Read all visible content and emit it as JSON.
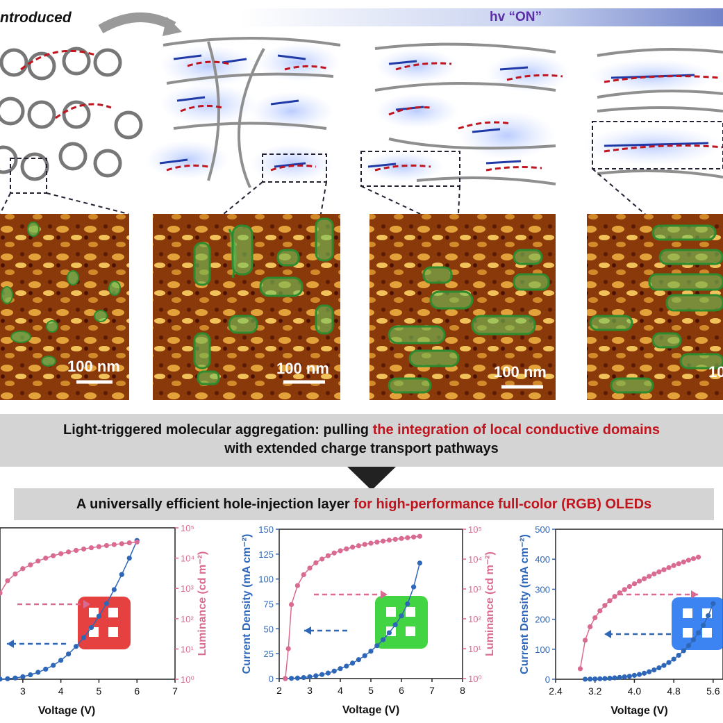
{
  "header": {
    "left_label": "ntroduced",
    "light_label": "hv “ON”"
  },
  "afm_panels": [
    {
      "scale_label": "100 nm"
    },
    {
      "scale_label": "100 nm"
    },
    {
      "scale_label": "100 nm"
    },
    {
      "scale_label": "10"
    }
  ],
  "banner1": {
    "line1_black": "Light-triggered molecular aggregation: pulling ",
    "line1_red": "the integration of local conductive domains",
    "line2": "with extended charge transport pathways"
  },
  "banner2": {
    "black": "A universally efficient hole-injection layer ",
    "red": "for high-performance full-color (RGB) OLEDs"
  },
  "colors": {
    "current_blue": "#2e66b8",
    "luminance_pink": "#d96a92",
    "banner_gray": "#d4d4d4",
    "accent_red": "#c0141e",
    "hv_purple": "#5a2ea6"
  },
  "chart_data": [
    {
      "type": "line",
      "xlabel": "Voltage (V)",
      "ylabel": "",
      "y2label": "Luminance (cd m⁻²)",
      "xticks": [
        "3",
        "4",
        "5",
        "6",
        "7"
      ],
      "y2ticks": [
        "10⁰",
        "10¹",
        "10²",
        "10³",
        "10⁴",
        "10⁵"
      ],
      "series": [
        {
          "role": "current_density",
          "x": [
            2.4,
            2.6,
            2.8,
            3.0,
            3.2,
            3.4,
            3.6,
            3.8,
            4.0,
            4.2,
            4.4,
            4.6,
            4.8,
            5.0,
            5.2,
            5.4,
            5.6,
            5.8,
            6.0
          ],
          "y": [
            0.1,
            0.4,
            1,
            2,
            3.5,
            5.5,
            8,
            11,
            15,
            20,
            26,
            33,
            41,
            50,
            60,
            71,
            83,
            96,
            110
          ]
        },
        {
          "role": "luminance",
          "x": [
            2.4,
            2.6,
            2.8,
            3.0,
            3.2,
            3.4,
            3.6,
            3.8,
            4.0,
            4.2,
            4.4,
            4.6,
            4.8,
            5.0,
            5.2,
            5.4,
            5.6,
            5.8,
            6.0
          ],
          "y": [
            700,
            1800,
            3000,
            4500,
            6000,
            8000,
            10000,
            12000,
            14000,
            16000,
            18000,
            20000,
            22000,
            24000,
            26000,
            28000,
            30000,
            32000,
            34000
          ]
        }
      ]
    },
    {
      "type": "line",
      "xlabel": "Voltage (V)",
      "ylabel": "Current Density (mA cm⁻²)",
      "y2label": "Luminance (cd m⁻²)",
      "xlim": [
        2,
        8
      ],
      "ylim": [
        0,
        150
      ],
      "xticks": [
        "2",
        "3",
        "4",
        "5",
        "6",
        "7",
        "8"
      ],
      "yticks": [
        "0",
        "25",
        "50",
        "75",
        "100",
        "125",
        "150"
      ],
      "y2ticks": [
        "10⁰",
        "10¹",
        "10²",
        "10³",
        "10⁴",
        "10⁵"
      ],
      "series": [
        {
          "role": "current_density",
          "x": [
            2.2,
            2.4,
            2.6,
            2.8,
            3.0,
            3.2,
            3.4,
            3.6,
            3.8,
            4.0,
            4.2,
            4.4,
            4.6,
            4.8,
            5.0,
            5.2,
            5.4,
            5.6,
            5.8,
            6.0,
            6.2,
            6.4,
            6.6
          ],
          "y": [
            0,
            0.2,
            0.5,
            1,
            1.8,
            2.8,
            4,
            5.5,
            7.5,
            10,
            12.5,
            15.5,
            19,
            23,
            27.5,
            33,
            39,
            46,
            54,
            63,
            75,
            92,
            116
          ]
        },
        {
          "role": "luminance",
          "x": [
            2.2,
            2.3,
            2.4,
            2.6,
            2.8,
            3.0,
            3.2,
            3.4,
            3.6,
            3.8,
            4.0,
            4.2,
            4.4,
            4.6,
            4.8,
            5.0,
            5.2,
            5.4,
            5.6,
            5.8,
            6.0,
            6.2,
            6.4,
            6.6
          ],
          "y": [
            1,
            10,
            300,
            1300,
            3000,
            5000,
            7500,
            10000,
            13000,
            16000,
            19000,
            22000,
            25000,
            28000,
            31000,
            34000,
            37000,
            40000,
            43000,
            46000,
            49000,
            52000,
            55000,
            58000
          ]
        }
      ]
    },
    {
      "type": "line",
      "xlabel": "Voltage (V)",
      "ylabel": "Current Density (mA cm⁻²)",
      "xlim": [
        2.4,
        5.8
      ],
      "ylim": [
        0,
        500
      ],
      "xticks": [
        "2.4",
        "3.2",
        "4.0",
        "4.8",
        "5.6"
      ],
      "yticks": [
        "0",
        "100",
        "200",
        "300",
        "400",
        "500"
      ],
      "series": [
        {
          "role": "current_density",
          "x": [
            3.0,
            3.1,
            3.2,
            3.3,
            3.4,
            3.5,
            3.6,
            3.7,
            3.8,
            3.9,
            4.0,
            4.1,
            4.2,
            4.3,
            4.4,
            4.5,
            4.6,
            4.7,
            4.8,
            4.9,
            5.0,
            5.1,
            5.2,
            5.3,
            5.4,
            5.5,
            5.6
          ],
          "y": [
            0.2,
            0.5,
            1,
            1.6,
            2.4,
            3.4,
            4.6,
            6,
            8,
            10,
            13,
            16,
            20,
            25,
            31,
            38,
            46,
            56,
            67,
            80,
            95,
            112,
            132,
            155,
            180,
            212,
            252
          ]
        },
        {
          "role": "luminance",
          "x": [
            2.9,
            3.0,
            3.1,
            3.2,
            3.3,
            3.4,
            3.5,
            3.6,
            3.7,
            3.8,
            3.9,
            4.0,
            4.1,
            4.2,
            4.3,
            4.4,
            4.5,
            4.6,
            4.7,
            4.8,
            4.9,
            5.0,
            5.1,
            5.2,
            5.3
          ],
          "y": [
            35,
            130,
            175,
            205,
            228,
            246,
            262,
            276,
            288,
            299,
            309,
            318,
            327,
            335,
            343,
            351,
            358,
            365,
            372,
            379,
            385,
            391,
            397,
            402,
            407
          ]
        }
      ]
    }
  ]
}
